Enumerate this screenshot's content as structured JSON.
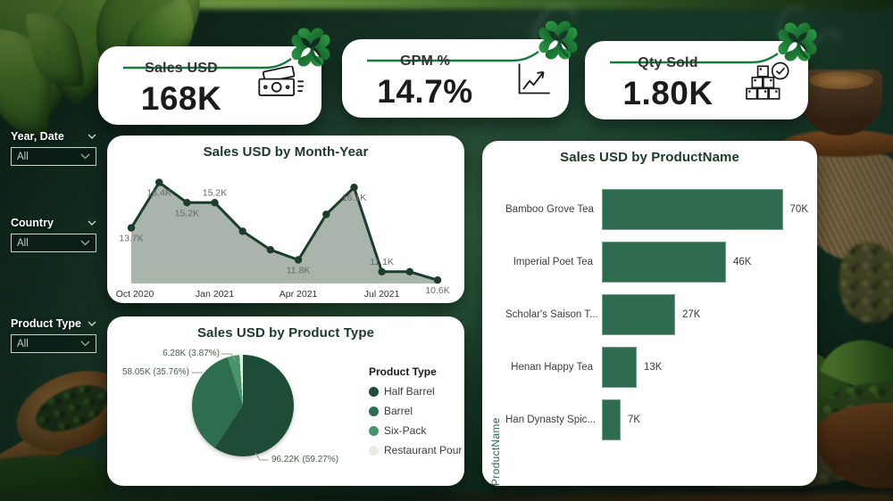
{
  "kpis": [
    {
      "title": "Sales USD",
      "value": "168K",
      "icon": "money-icon"
    },
    {
      "title": "GPM %",
      "value": "14.7%",
      "icon": "trend-up-icon"
    },
    {
      "title": "Qty Sold",
      "value": "1.80K",
      "icon": "boxes-check-icon"
    }
  ],
  "filters": [
    {
      "label": "Year, Date",
      "value": "All"
    },
    {
      "label": "Country",
      "value": "All"
    },
    {
      "label": "Product Type",
      "value": "All"
    }
  ],
  "chart_data": [
    {
      "id": "sales_by_month",
      "type": "area",
      "title": "Sales USD by Month-Year",
      "x": [
        "Oct 2020",
        "Nov 2020",
        "Dec 2020",
        "Jan 2021",
        "Feb 2021",
        "Mar 2021",
        "Apr 2021",
        "May 2021",
        "Jun 2021",
        "Jul 2021",
        "Aug 2021",
        "Sep 2021"
      ],
      "values": [
        13.7,
        16.4,
        15.2,
        15.2,
        13.5,
        12.4,
        11.8,
        14.5,
        16.1,
        11.1,
        11.1,
        10.6
      ],
      "data_labels": [
        "13.7K",
        "16.4K",
        "15.2K",
        "15.2K",
        null,
        null,
        "11.8K",
        null,
        "16.1K",
        "11.1K",
        null,
        "10.6K"
      ],
      "label_pos": [
        "below",
        "below",
        "below",
        "above",
        null,
        null,
        "below",
        null,
        "below",
        "above",
        null,
        "below"
      ],
      "x_ticks": [
        {
          "index": 0,
          "label": "Oct 2020"
        },
        {
          "index": 3,
          "label": "Jan 2021"
        },
        {
          "index": 6,
          "label": "Apr 2021"
        },
        {
          "index": 9,
          "label": "Jul 2021"
        }
      ],
      "ylim": [
        10.4,
        16.8
      ],
      "grid": false,
      "line_color": "#1c3c2c",
      "fill_color": "#a9b4ab",
      "marker_color": "#1c3c2c"
    },
    {
      "id": "sales_by_product_type",
      "type": "pie",
      "title": "Sales USD by Product Type",
      "legend_title": "Product Type",
      "legend_position": "right",
      "slices": [
        {
          "name": "Half Barrel",
          "value_label": "96.22K",
          "pct": 59.27,
          "color": "#1e4c36",
          "callout": "96.22K (59.27%)"
        },
        {
          "name": "Barrel",
          "value_label": "58.05K",
          "pct": 35.76,
          "color": "#2e6e50",
          "callout": "58.05K (35.76%)"
        },
        {
          "name": "Six-Pack",
          "value_label": "6.28K",
          "pct": 3.87,
          "color": "#47946a",
          "callout": "6.28K (3.87%)"
        },
        {
          "name": "Restaurant Pour",
          "pct": 1.1,
          "color": "#ecebdf",
          "callout": null
        }
      ]
    },
    {
      "id": "sales_by_product_name",
      "type": "bar",
      "title": "Sales USD by ProductName",
      "ylabel": "ProductName",
      "categories": [
        "Bamboo Grove Tea",
        "Imperial Poet Tea",
        "Scholar's Saison T...",
        "Henan Happy Tea",
        "Han Dynasty Spic..."
      ],
      "values": [
        70,
        46,
        27,
        13,
        7
      ],
      "value_labels": [
        "70K",
        "46K",
        "27K",
        "13K",
        "7K"
      ],
      "xmax": 70,
      "bar_color": "#2f6b4f",
      "orientation": "horizontal"
    }
  ],
  "colors": {
    "accent_green": "#157a3d",
    "panel_bg": "#ffffff",
    "title_green": "#1c3a2a",
    "clover_light": "#2f9c46",
    "clover_dark": "#0c5424"
  }
}
